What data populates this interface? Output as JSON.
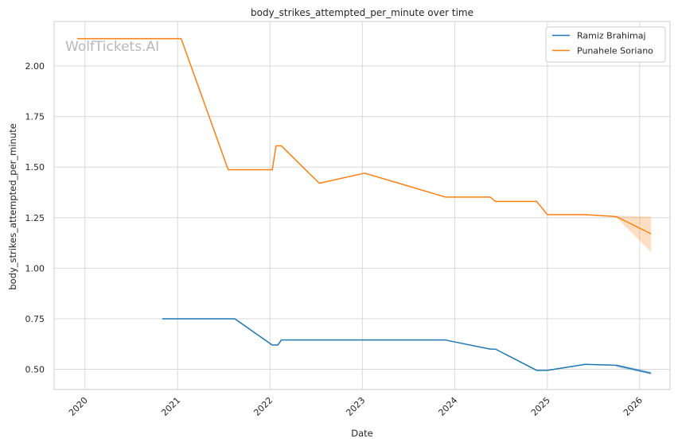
{
  "chart_data": {
    "type": "line",
    "title": "body_strikes_attempted_per_minute over time",
    "xlabel": "Date",
    "ylabel": "body_strikes_attempted_per_minute",
    "watermark": "WolfTickets.AI",
    "x_ticks": [
      "2020",
      "2021",
      "2022",
      "2023",
      "2024",
      "2025",
      "2026"
    ],
    "y_ticks": [
      "0.50",
      "0.75",
      "1.00",
      "1.25",
      "1.50",
      "1.75",
      "2.00"
    ],
    "xlim": [
      "2019-09-01",
      "2026-05-01"
    ],
    "ylim": [
      0.4,
      2.22
    ],
    "grid": true,
    "legend_position": "top-right",
    "colors": {
      "Ramiz Brahimaj": "#1f77b4",
      "Punahele Soriano": "#ff7f0e"
    },
    "series": [
      {
        "name": "Ramiz Brahimaj",
        "points": [
          [
            "2020-11-01",
            0.75
          ],
          [
            "2021-08-15",
            0.75
          ],
          [
            "2022-01-10",
            0.62
          ],
          [
            "2022-02-01",
            0.62
          ],
          [
            "2022-02-15",
            0.645
          ],
          [
            "2023-11-25",
            0.645
          ],
          [
            "2024-05-20",
            0.6
          ],
          [
            "2024-06-10",
            0.6
          ],
          [
            "2024-11-20",
            0.495
          ],
          [
            "2025-01-01",
            0.495
          ],
          [
            "2025-06-01",
            0.525
          ],
          [
            "2025-10-01",
            0.52
          ],
          [
            "2026-02-15",
            0.48
          ]
        ],
        "band": [
          [
            "2025-10-01",
            0.51,
            0.525
          ],
          [
            "2026-02-15",
            0.475,
            0.49
          ]
        ]
      },
      {
        "name": "Punahele Soriano",
        "points": [
          [
            "2019-12-01",
            2.135
          ],
          [
            "2021-01-15",
            2.135
          ],
          [
            "2021-07-20",
            1.487
          ],
          [
            "2022-01-10",
            1.487
          ],
          [
            "2022-01-25",
            1.605
          ],
          [
            "2022-02-15",
            1.605
          ],
          [
            "2022-07-15",
            1.42
          ],
          [
            "2023-01-10",
            1.47
          ],
          [
            "2023-11-25",
            1.352
          ],
          [
            "2024-05-20",
            1.352
          ],
          [
            "2024-06-10",
            1.33
          ],
          [
            "2024-11-20",
            1.33
          ],
          [
            "2025-01-01",
            1.265
          ],
          [
            "2025-06-01",
            1.265
          ],
          [
            "2025-10-01",
            1.255
          ],
          [
            "2026-02-15",
            1.17
          ]
        ],
        "band": [
          [
            "2025-10-01",
            1.25,
            1.26
          ],
          [
            "2026-02-15",
            1.08,
            1.255
          ]
        ]
      }
    ]
  }
}
